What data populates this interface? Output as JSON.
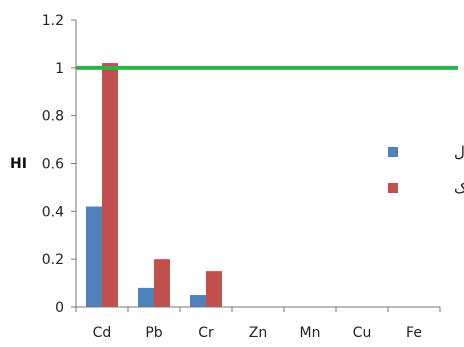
{
  "chart_data": {
    "type": "bar",
    "title": "",
    "xlabel": "",
    "ylabel": "HI",
    "categories": [
      "Cd",
      "Pb",
      "Cr",
      "Zn",
      "Mn",
      "Cu",
      "Fe"
    ],
    "ylim": [
      0,
      1.2
    ],
    "yticks": [
      "0",
      "0.2",
      "0.4",
      "0.6",
      "0.8",
      "1",
      "1.2"
    ],
    "series": [
      {
        "name": "بزرگسال",
        "color": "#4f81bd",
        "values": [
          0.42,
          0.08,
          0.05,
          0,
          0,
          0,
          0
        ]
      },
      {
        "name": "کودک",
        "color": "#c0504d",
        "values": [
          1.02,
          0.2,
          0.15,
          0,
          0,
          0,
          0
        ]
      }
    ],
    "reference_line": {
      "value": 1,
      "color": "#2db34a"
    },
    "legend_position": "right",
    "grid": false
  }
}
